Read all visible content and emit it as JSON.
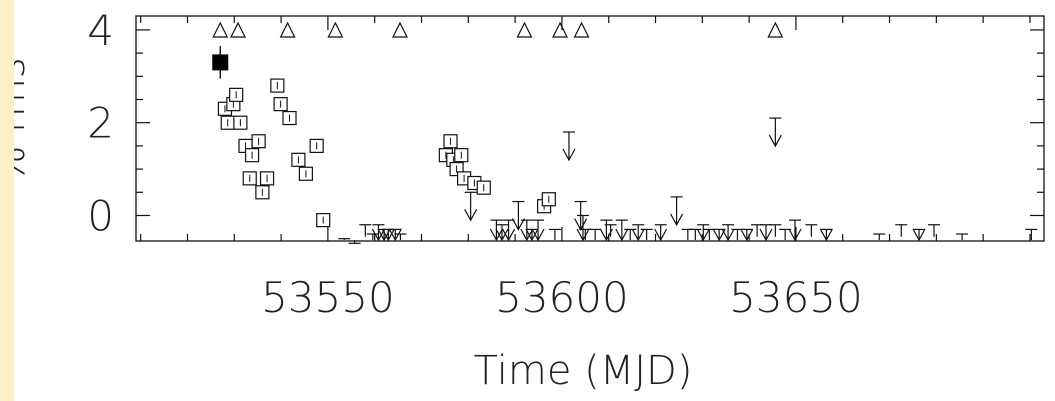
{
  "chart_data": {
    "type": "scatter",
    "title": "",
    "xlabel": "Time (MJD)",
    "ylabel": "% rms",
    "xlim": [
      53509,
      53703
    ],
    "ylim": [
      -0.55,
      4.3
    ],
    "xticks": [
      53550,
      53600,
      53650
    ],
    "yticks": [
      0,
      2,
      4
    ],
    "grid": false,
    "legend": "none",
    "filled_detection": {
      "x": 53527,
      "y": 3.3,
      "err": 0.35
    },
    "detections": [
      {
        "x": 53528,
        "y": 2.3
      },
      {
        "x": 53528.6,
        "y": 2.0
      },
      {
        "x": 53529.8,
        "y": 2.4
      },
      {
        "x": 53530.4,
        "y": 2.6
      },
      {
        "x": 53531.3,
        "y": 2.0
      },
      {
        "x": 53532.4,
        "y": 1.5
      },
      {
        "x": 53533.3,
        "y": 0.8
      },
      {
        "x": 53533.8,
        "y": 1.3
      },
      {
        "x": 53535.2,
        "y": 1.6
      },
      {
        "x": 53536,
        "y": 0.5
      },
      {
        "x": 53537,
        "y": 0.8
      },
      {
        "x": 53539.2,
        "y": 2.8
      },
      {
        "x": 53539.9,
        "y": 2.4
      },
      {
        "x": 53541.8,
        "y": 2.1
      },
      {
        "x": 53543.7,
        "y": 1.2
      },
      {
        "x": 53545.3,
        "y": 0.9
      },
      {
        "x": 53547.6,
        "y": 1.5
      },
      {
        "x": 53549,
        "y": -0.1
      },
      {
        "x": 53575.2,
        "y": 1.3
      },
      {
        "x": 53576.2,
        "y": 1.6
      },
      {
        "x": 53576.8,
        "y": 1.2
      },
      {
        "x": 53577.5,
        "y": 1.0
      },
      {
        "x": 53578.5,
        "y": 1.3
      },
      {
        "x": 53579.1,
        "y": 0.8
      },
      {
        "x": 53581.3,
        "y": 0.7
      },
      {
        "x": 53583.3,
        "y": 0.6
      },
      {
        "x": 53596.2,
        "y": 0.2
      },
      {
        "x": 53597.2,
        "y": 0.35
      }
    ],
    "upper_limits": [
      {
        "x": 53553.5,
        "y": -0.5,
        "arrow": false
      },
      {
        "x": 53555.7,
        "y": -0.6,
        "arrow": false
      },
      {
        "x": 53558,
        "y": -0.2,
        "arrow": false
      },
      {
        "x": 53559.6,
        "y": -0.4,
        "arrow": false
      },
      {
        "x": 53560.8,
        "y": -0.2,
        "arrow": true
      },
      {
        "x": 53562,
        "y": -0.3,
        "arrow": true
      },
      {
        "x": 53562.9,
        "y": -0.3,
        "arrow": true
      },
      {
        "x": 53564.4,
        "y": -0.3,
        "arrow": true
      },
      {
        "x": 53565.5,
        "y": -0.4,
        "arrow": false
      },
      {
        "x": 53580.5,
        "y": 0.5,
        "arrow": true
      },
      {
        "x": 53586,
        "y": -0.1,
        "arrow": true
      },
      {
        "x": 53587.2,
        "y": -0.2,
        "arrow": true
      },
      {
        "x": 53588.6,
        "y": -0.1,
        "arrow": true
      },
      {
        "x": 53590.7,
        "y": 0.3,
        "arrow": true
      },
      {
        "x": 53592.5,
        "y": -0.1,
        "arrow": true
      },
      {
        "x": 53593.6,
        "y": -0.3,
        "arrow": true
      },
      {
        "x": 53594.9,
        "y": -0.1,
        "arrow": true
      },
      {
        "x": 53598.5,
        "y": -0.3,
        "arrow": false
      },
      {
        "x": 53601.5,
        "y": 1.8,
        "arrow": true
      },
      {
        "x": 53604,
        "y": 0.3,
        "arrow": true
      },
      {
        "x": 53604.5,
        "y": 0.0,
        "arrow": true
      },
      {
        "x": 53605,
        "y": -0.3,
        "arrow": false
      },
      {
        "x": 53607.1,
        "y": -0.3,
        "arrow": false
      },
      {
        "x": 53609.5,
        "y": -0.1,
        "arrow": true
      },
      {
        "x": 53610.4,
        "y": -0.2,
        "arrow": false
      },
      {
        "x": 53612.8,
        "y": -0.1,
        "arrow": true
      },
      {
        "x": 53614.6,
        "y": -0.3,
        "arrow": false
      },
      {
        "x": 53616.3,
        "y": -0.2,
        "arrow": true
      },
      {
        "x": 53618.1,
        "y": -0.3,
        "arrow": false
      },
      {
        "x": 53621.1,
        "y": -0.2,
        "arrow": true
      },
      {
        "x": 53624.5,
        "y": 0.4,
        "arrow": true
      },
      {
        "x": 53626.9,
        "y": -0.3,
        "arrow": false
      },
      {
        "x": 53628.5,
        "y": -0.3,
        "arrow": false
      },
      {
        "x": 53630.2,
        "y": -0.2,
        "arrow": true
      },
      {
        "x": 53631.5,
        "y": -0.3,
        "arrow": false
      },
      {
        "x": 53633.6,
        "y": -0.3,
        "arrow": true
      },
      {
        "x": 53635.5,
        "y": -0.2,
        "arrow": true
      },
      {
        "x": 53637.5,
        "y": -0.3,
        "arrow": false
      },
      {
        "x": 53639.5,
        "y": -0.3,
        "arrow": true
      },
      {
        "x": 53641.7,
        "y": -0.2,
        "arrow": false
      },
      {
        "x": 53643.6,
        "y": -0.2,
        "arrow": true
      },
      {
        "x": 53645.6,
        "y": -0.2,
        "arrow": false
      },
      {
        "x": 53645.6,
        "y": 2.1,
        "arrow": true
      },
      {
        "x": 53647.7,
        "y": -0.3,
        "arrow": false
      },
      {
        "x": 53649.8,
        "y": -0.1,
        "arrow": true
      },
      {
        "x": 53653.3,
        "y": -0.2,
        "arrow": false
      },
      {
        "x": 53656.5,
        "y": -0.3,
        "arrow": true
      },
      {
        "x": 53667.8,
        "y": -0.4,
        "arrow": false
      },
      {
        "x": 53672.5,
        "y": -0.2,
        "arrow": false
      },
      {
        "x": 53676.3,
        "y": -0.3,
        "arrow": true
      },
      {
        "x": 53679.5,
        "y": -0.2,
        "arrow": false
      },
      {
        "x": 53685.5,
        "y": -0.4,
        "arrow": false
      },
      {
        "x": 53700.3,
        "y": -0.3,
        "arrow": false
      }
    ],
    "triangle_markers_x": [
      53527,
      53530.8,
      53541.4,
      53551.6,
      53565.4,
      53592,
      53599.6,
      53604.2,
      53645.6
    ]
  }
}
